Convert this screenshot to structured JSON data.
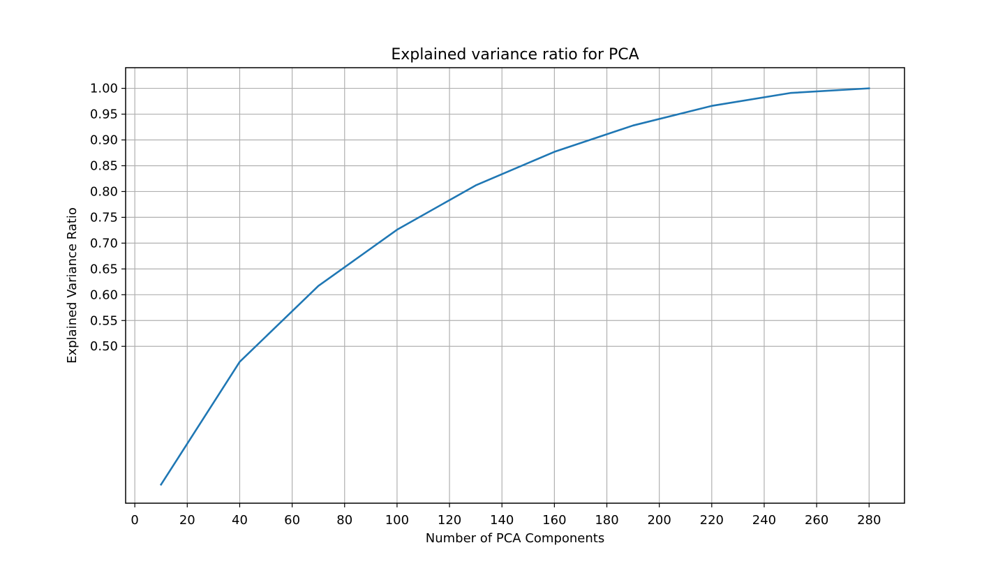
{
  "chart_data": {
    "type": "line",
    "title": "Explained variance ratio for PCA",
    "xlabel": "Number of PCA Components",
    "ylabel": "Explained Variance Ratio",
    "xlim": [
      -3.5,
      293.5
    ],
    "ylim": [
      0.196,
      1.04
    ],
    "xticks": [
      0,
      20,
      40,
      60,
      80,
      100,
      120,
      140,
      160,
      180,
      200,
      220,
      240,
      260,
      280
    ],
    "yticks": [
      0.5,
      0.55,
      0.6,
      0.65,
      0.7,
      0.75,
      0.8,
      0.85,
      0.9,
      0.95,
      1.0
    ],
    "ytick_labels": [
      "0.50",
      "0.55",
      "0.60",
      "0.65",
      "0.70",
      "0.75",
      "0.80",
      "0.85",
      "0.90",
      "0.95",
      "1.00"
    ],
    "grid": true,
    "line_color": "#1f77b4",
    "series": [
      {
        "x": [
          10,
          40,
          70,
          100,
          130,
          160,
          190,
          220,
          250,
          280
        ],
        "values": [
          0.232,
          0.47,
          0.617,
          0.726,
          0.812,
          0.877,
          0.928,
          0.966,
          0.991,
          1.0
        ]
      }
    ]
  }
}
